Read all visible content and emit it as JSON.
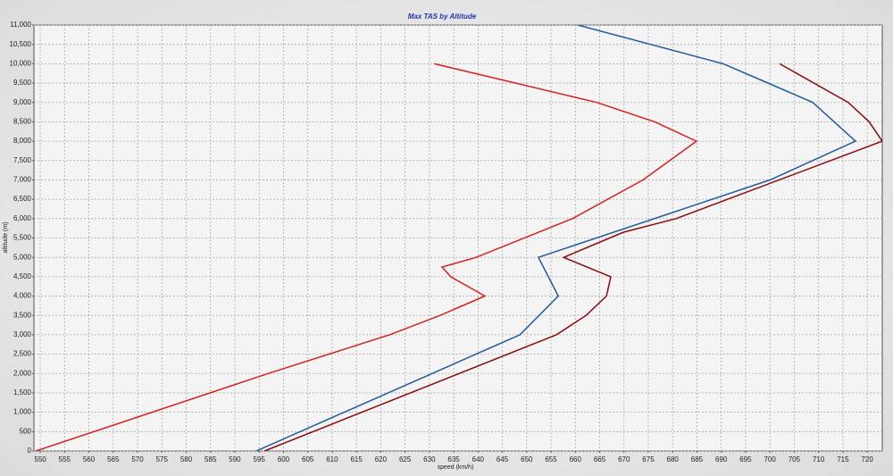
{
  "chart_data": {
    "type": "line",
    "title": "Max TAS by Altitude",
    "x_label": "speed (km/h)",
    "y_label": "altitude (m)",
    "series": [
      {
        "color": "#d42222",
        "x": [
          549.1,
          596.8,
          621.8,
          632.2,
          641.4,
          634.4,
          632.6,
          639.6,
          659.4,
          673.9,
          684.9,
          676.3,
          664.4,
          631.0
        ],
        "values": [
          0,
          2000,
          3000,
          3500,
          4000,
          4500,
          4750,
          5000,
          6000,
          7000,
          8000,
          8500,
          9000,
          10000
        ]
      },
      {
        "color": "#1f5a9a",
        "x": [
          594.4,
          648.6,
          656.5,
          652.4,
          700.0,
          717.6,
          708.8,
          699.6,
          690.4,
          660.5
        ],
        "values": [
          0,
          3000,
          4000,
          5000,
          7000,
          8000,
          9000,
          9500,
          10000,
          11000
        ]
      },
      {
        "color": "#8b0a0a",
        "x": [
          596.1,
          656.1,
          662.2,
          666.4,
          667.3,
          657.6,
          669.9,
          680.7,
          723.1,
          720.4,
          716.1,
          702.0
        ],
        "values": [
          0,
          3000,
          3500,
          4000,
          4500,
          5000,
          5650,
          6000,
          8000,
          8500,
          9000,
          10000
        ]
      }
    ],
    "xlim": [
      548.7,
      723.1
    ],
    "ylim": [
      0,
      11000
    ],
    "xticks": [
      550,
      555,
      560,
      565,
      570,
      575,
      580,
      585,
      590,
      595,
      600,
      605,
      610,
      615,
      620,
      625,
      630,
      635,
      640,
      645,
      650,
      655,
      660,
      665,
      670,
      675,
      680,
      685,
      690,
      695,
      700,
      705,
      710,
      715,
      720
    ],
    "yticks": [
      0,
      500,
      {
        "value": 1000,
        "label": "1,000"
      },
      {
        "value": 1500,
        "label": "1,500"
      },
      {
        "value": 2000,
        "label": "2,000"
      },
      {
        "value": 2500,
        "label": "2,500"
      },
      {
        "value": 3000,
        "label": "3,000"
      },
      {
        "value": 3500,
        "label": "3,500"
      },
      {
        "value": 4000,
        "label": "4,000"
      },
      {
        "value": 4500,
        "label": "4,500"
      },
      {
        "value": 5000,
        "label": "5,000"
      },
      {
        "value": 5500,
        "label": "5,500"
      },
      {
        "value": 6000,
        "label": "6,000"
      },
      {
        "value": 6500,
        "label": "6,500"
      },
      {
        "value": 7000,
        "label": "7,000"
      },
      {
        "value": 7500,
        "label": "7,500"
      },
      {
        "value": 8000,
        "label": "8,000"
      },
      {
        "value": 8500,
        "label": "8,500"
      },
      {
        "value": 9000,
        "label": "9,000"
      },
      {
        "value": 9500,
        "label": "9,500"
      },
      {
        "value": 10000,
        "label": "10,000"
      },
      {
        "value": 10500,
        "label": "10,500"
      },
      {
        "value": 11000,
        "label": "11,000"
      }
    ],
    "grid": true
  }
}
